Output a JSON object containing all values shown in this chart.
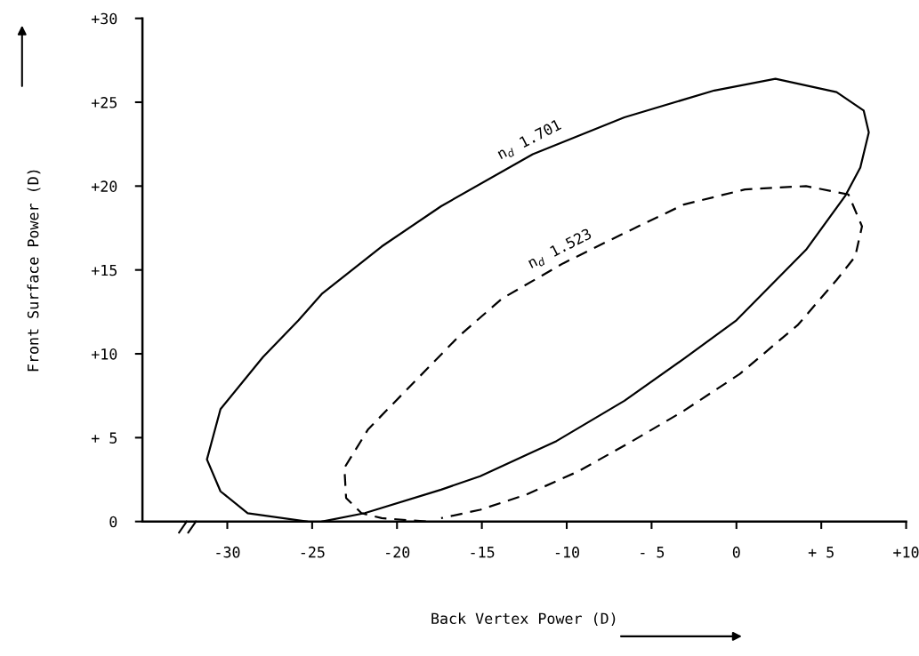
{
  "chart_data": {
    "type": "line",
    "xlabel": "Back Vertex Power (D)",
    "ylabel": "Front Surface Power (D)",
    "xlim": [
      -35,
      10
    ],
    "ylim": [
      0,
      30
    ],
    "xticks": [
      -30,
      -25,
      -20,
      -15,
      -10,
      {
        "value": -5,
        "label": "- 5"
      },
      0,
      {
        "value": 5,
        "label": "+ 5"
      },
      {
        "value": 10,
        "label": "+10"
      }
    ],
    "yticks": [
      0,
      {
        "value": 5,
        "label": "+ 5"
      },
      {
        "value": 10,
        "label": "+10"
      },
      {
        "value": 15,
        "label": "+15"
      },
      {
        "value": 20,
        "label": "+20"
      },
      {
        "value": 25,
        "label": "+25"
      },
      {
        "value": 30,
        "label": "+30"
      }
    ],
    "grid": false,
    "legend": false,
    "marker": "none",
    "series": [
      {
        "name": "n$_{d}$ 1.701",
        "color": "#000000",
        "line_style": "solid",
        "x": [
          -25.3,
          -28.8,
          -30.4,
          -31.2,
          -30.4,
          -27.9,
          -25.8,
          -24.4,
          -20.9,
          -17.4,
          -12.0,
          -6.6,
          -1.3,
          2.3,
          5.9,
          7.5,
          7.8,
          7.3,
          6.4,
          4.1,
          0,
          -3.1,
          -6.6,
          -10.6,
          -15.1,
          -17.4,
          -21.9,
          -24.4
        ],
        "values": [
          0,
          0.5,
          1.8,
          3.7,
          6.7,
          9.8,
          12.0,
          13.6,
          16.4,
          18.8,
          21.9,
          24.1,
          25.7,
          26.4,
          25.6,
          24.5,
          23.2,
          21.1,
          19.4,
          16.2,
          12.0,
          9.7,
          7.2,
          4.8,
          2.7,
          1.9,
          0.5,
          0
        ]
      },
      {
        "name": "n$_{d}$ 1.523",
        "color": "#000000",
        "line_style": "dashed",
        "x": [
          -18.3,
          -20.9,
          -22.1,
          -23.0,
          -23.1,
          -21.7,
          -19.1,
          -16.3,
          -13.8,
          -10.2,
          -6.6,
          -3.1,
          0.5,
          4.1,
          6.6,
          7.4,
          7.0,
          5.9,
          3.6,
          2.3,
          0.2,
          -3.1,
          -6.3,
          -9.3,
          -12.4,
          -15.1,
          -17.4
        ],
        "values": [
          0,
          0.2,
          0.5,
          1.4,
          3.2,
          5.5,
          8.2,
          11.1,
          13.3,
          15.4,
          17.2,
          18.9,
          19.8,
          20.0,
          19.5,
          17.6,
          15.8,
          14.4,
          11.7,
          10.6,
          8.8,
          6.6,
          4.7,
          3.0,
          1.6,
          0.7,
          0.2
        ]
      }
    ]
  }
}
